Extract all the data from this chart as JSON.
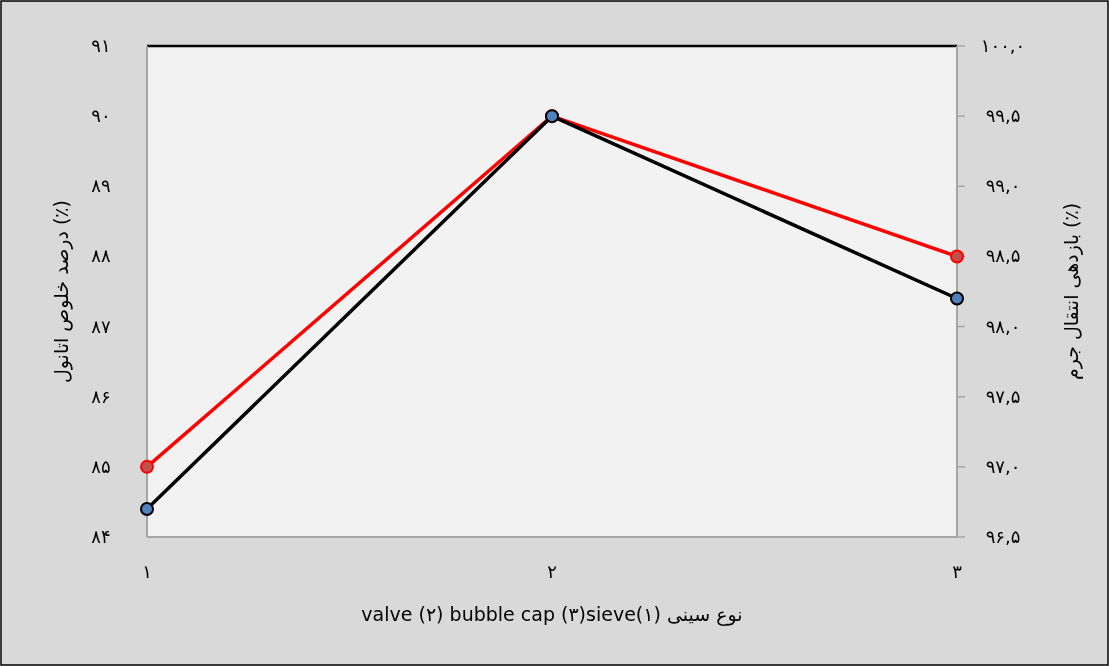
{
  "chart_data": {
    "type": "line",
    "x": [
      1,
      2,
      3
    ],
    "xlim": [
      1,
      3
    ],
    "xticks": [
      {
        "value": 1,
        "label": "۱"
      },
      {
        "value": 2,
        "label": "۲"
      },
      {
        "value": 3,
        "label": "۳"
      }
    ],
    "ylim": [
      84,
      91
    ],
    "yticks": [
      {
        "value": 84,
        "label": "۸۴"
      },
      {
        "value": 85,
        "label": "۸۵"
      },
      {
        "value": 86,
        "label": "۸۶"
      },
      {
        "value": 87,
        "label": "۸۷"
      },
      {
        "value": 88,
        "label": "۸۸"
      },
      {
        "value": 89,
        "label": "۸۹"
      },
      {
        "value": 90,
        "label": "۹۰"
      },
      {
        "value": 91,
        "label": "۹۱"
      }
    ],
    "y2lim": [
      96.5,
      100.0
    ],
    "y2ticks": [
      {
        "value": 96.5,
        "label": "۹۶,۵"
      },
      {
        "value": 97.0,
        "label": "۹۷,۰"
      },
      {
        "value": 97.5,
        "label": "۹۷,۵"
      },
      {
        "value": 98.0,
        "label": "۹۸,۰"
      },
      {
        "value": 98.5,
        "label": "۹۸,۵"
      },
      {
        "value": 99.0,
        "label": "۹۹,۰"
      },
      {
        "value": 99.5,
        "label": "۹۹,۵"
      },
      {
        "value": 100.0,
        "label": "۱۰۰,۰"
      }
    ],
    "xlabel": "نوع سینی (۱)valve (۲) bubble cap (۳)sieve",
    "ylabel": "درصد خلوص اتانول (٪)",
    "y2label": "بازدهی انتقال جرم (٪)",
    "marker": "circle",
    "grid": false,
    "series": [
      {
        "color": "#ff0000",
        "colors": [
          "#c0504d",
          "#c0504d",
          "#c0504d"
        ],
        "values": [
          85,
          90,
          88
        ]
      },
      {
        "color": "#000000",
        "colors": [
          "#4f81bd",
          "#4f81bd",
          "#4f81bd"
        ],
        "axis": "y2",
        "values": [
          96.7,
          99.5,
          98.2
        ]
      }
    ]
  }
}
